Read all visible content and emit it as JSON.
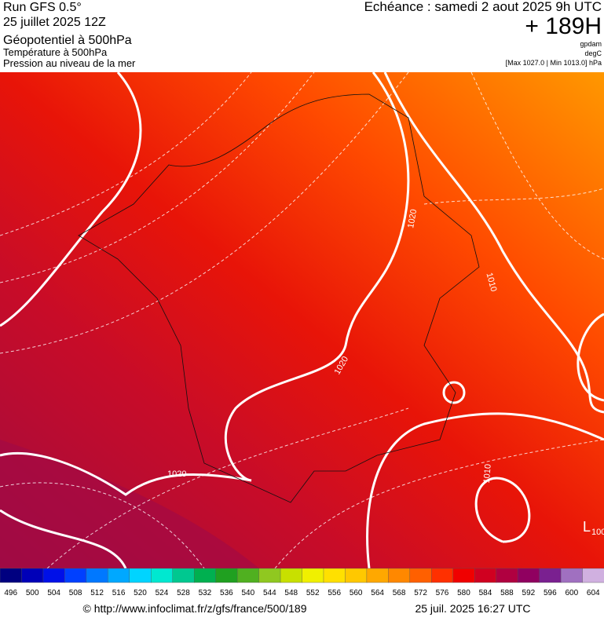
{
  "header": {
    "run": "Run GFS 0.5°",
    "date": "25 juillet 2025 12Z",
    "field": "Géopotentiel à 500hPa",
    "field2": "Température à 500hPa",
    "field3": "Pression au niveau de la mer",
    "valid": "Echéance : samedi 2 aout 2025 9h UTC",
    "lead": "+ 189H",
    "unit1": "gpdam",
    "unit2": "degC",
    "range": "[Max 1027.0 | Min 1013.0] hPa"
  },
  "map": {
    "isobar_labels": [
      "1020",
      "1020",
      "1020",
      "1010",
      "1010",
      "L",
      "100"
    ]
  },
  "colorbar": {
    "labels": [
      496,
      500,
      504,
      508,
      512,
      516,
      520,
      524,
      528,
      532,
      536,
      540,
      544,
      548,
      552,
      556,
      560,
      564,
      568,
      572,
      576,
      580,
      584,
      588,
      592,
      596,
      600,
      604
    ],
    "colors": [
      "#000080",
      "#0000b8",
      "#0010e8",
      "#0040ff",
      "#0078ff",
      "#00a8ff",
      "#00d4ff",
      "#00e8d0",
      "#00c890",
      "#00b050",
      "#20a020",
      "#50b020",
      "#90c820",
      "#c8e000",
      "#f0f000",
      "#ffe000",
      "#ffc800",
      "#ffa800",
      "#ff8800",
      "#ff6000",
      "#ff3000",
      "#f00000",
      "#d00020",
      "#b00040",
      "#900060",
      "#7a2090",
      "#a070c0",
      "#d0b0e0"
    ]
  },
  "footer": {
    "source": "© http://www.infoclimat.fr/z/gfs/france/500/189",
    "generated": "25 juil. 2025 16:27 UTC"
  }
}
